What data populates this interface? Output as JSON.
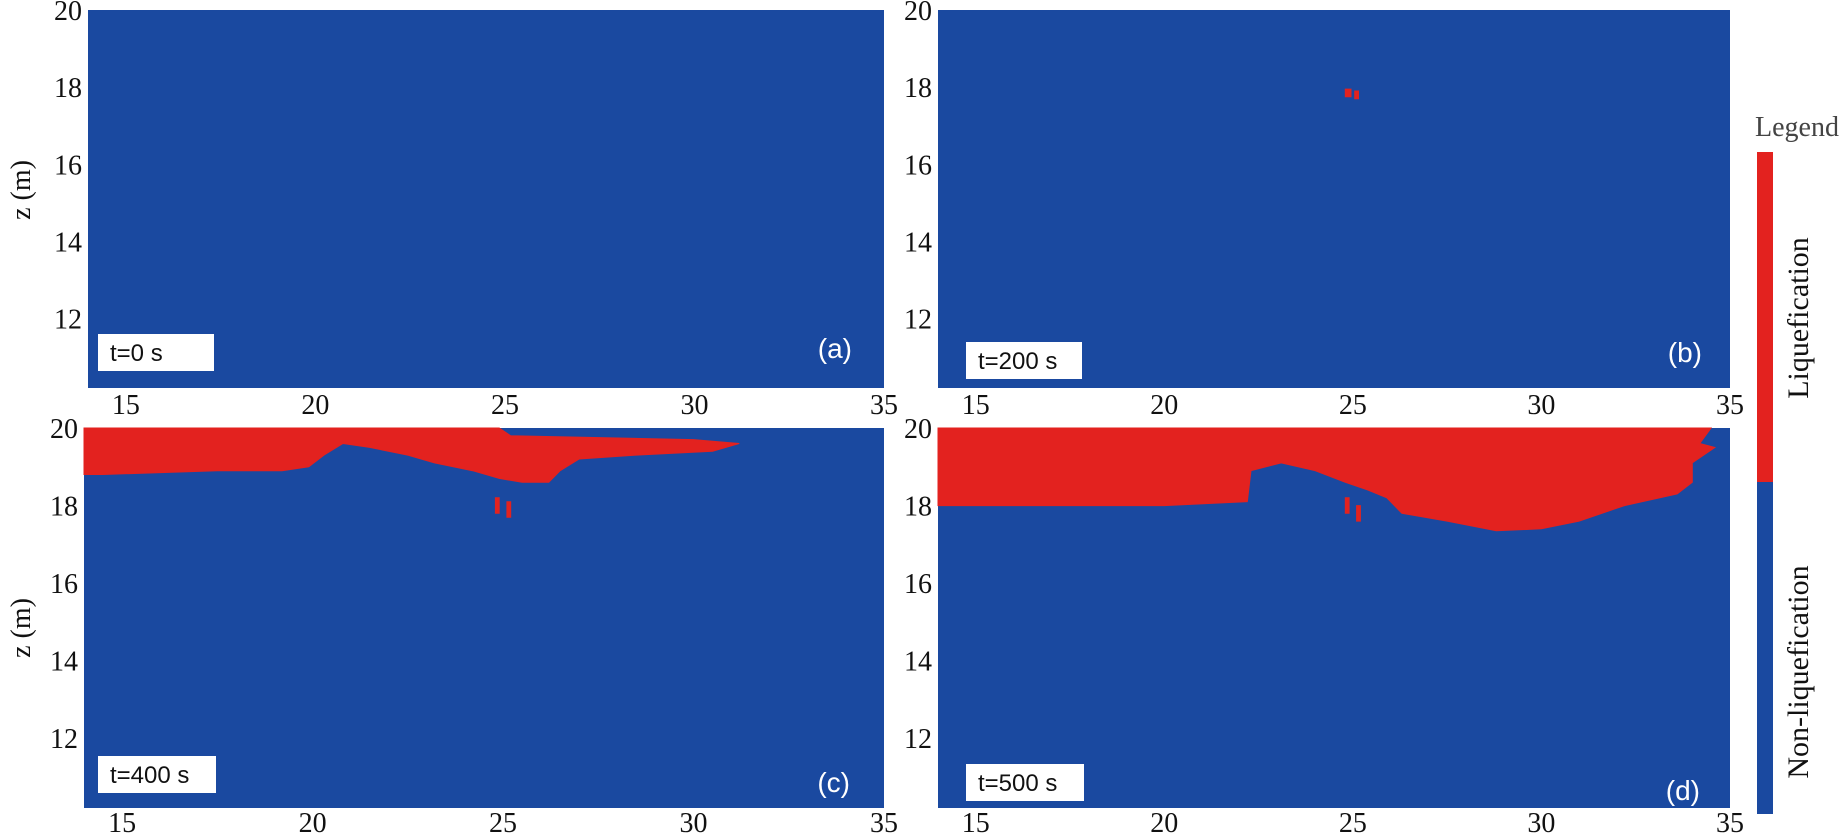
{
  "colors": {
    "non_liquefaction": "#1a49a0",
    "liquefaction": "#e3221f"
  },
  "chart_data": [
    {
      "type": "heatmap",
      "panel_label": "(a)",
      "time_label": "t=0 s",
      "ylabel": "z (m)",
      "xlim": [
        14,
        35
      ],
      "ylim": [
        10.2,
        20
      ],
      "xticks": [
        "15",
        "20",
        "25",
        "30",
        "35"
      ],
      "yticks": [
        "12",
        "14",
        "16",
        "18",
        "20"
      ],
      "liquefied_regions": []
    },
    {
      "type": "heatmap",
      "panel_label": "(b)",
      "time_label": "t=200 s",
      "ylabel": "",
      "xlim": [
        14,
        35
      ],
      "ylim": [
        10.2,
        20
      ],
      "xticks": [
        "15",
        "20",
        "25",
        "30",
        "35"
      ],
      "yticks": [
        "12",
        "14",
        "16",
        "18",
        "20"
      ],
      "liquefied_regions": [
        [
          [
            24.8,
            17.95
          ],
          [
            24.95,
            17.95
          ],
          [
            24.95,
            17.75
          ],
          [
            24.8,
            17.75
          ]
        ],
        [
          [
            25.05,
            17.9
          ],
          [
            25.15,
            17.9
          ],
          [
            25.15,
            17.7
          ],
          [
            25.05,
            17.7
          ]
        ]
      ]
    },
    {
      "type": "heatmap",
      "panel_label": "(c)",
      "time_label": "t=400 s",
      "ylabel": "z (m)",
      "xlim": [
        14,
        35
      ],
      "ylim": [
        10.2,
        20
      ],
      "xticks": [
        "15",
        "20",
        "25",
        "30",
        "35"
      ],
      "yticks": [
        "12",
        "14",
        "16",
        "18",
        "20"
      ],
      "liquefied_regions": [
        [
          [
            14,
            20
          ],
          [
            24.9,
            20
          ],
          [
            25.2,
            19.8
          ],
          [
            30,
            19.7
          ],
          [
            31.2,
            19.6
          ],
          [
            30.5,
            19.4
          ],
          [
            28.5,
            19.3
          ],
          [
            27,
            19.2
          ],
          [
            26.5,
            18.9
          ],
          [
            26.2,
            18.6
          ],
          [
            25.5,
            18.6
          ],
          [
            24.9,
            18.7
          ],
          [
            24.2,
            18.9
          ],
          [
            23.2,
            19.1
          ],
          [
            22.5,
            19.3
          ],
          [
            21.5,
            19.5
          ],
          [
            20.8,
            19.6
          ],
          [
            20.3,
            19.3
          ],
          [
            19.9,
            19.0
          ],
          [
            19.2,
            18.9
          ],
          [
            17.5,
            18.9
          ],
          [
            14.5,
            18.8
          ],
          [
            14,
            18.8
          ]
        ],
        [
          [
            24.8,
            18.2
          ],
          [
            24.9,
            18.2
          ],
          [
            24.9,
            17.8
          ],
          [
            24.8,
            17.8
          ]
        ],
        [
          [
            25.1,
            18.1
          ],
          [
            25.2,
            18.1
          ],
          [
            25.2,
            17.7
          ],
          [
            25.1,
            17.7
          ]
        ]
      ]
    },
    {
      "type": "heatmap",
      "panel_label": "(d)",
      "time_label": "t=500 s",
      "ylabel": "",
      "xlim": [
        14,
        35
      ],
      "ylim": [
        10.2,
        20
      ],
      "xticks": [
        "15",
        "20",
        "25",
        "30",
        "35"
      ],
      "yticks": [
        "12",
        "14",
        "16",
        "18",
        "20"
      ],
      "liquefied_regions": [
        [
          [
            14,
            20
          ],
          [
            34.5,
            20
          ],
          [
            34.2,
            19.6
          ],
          [
            34.6,
            19.5
          ],
          [
            34,
            19.1
          ],
          [
            34.0,
            18.6
          ],
          [
            33.6,
            18.3
          ],
          [
            32.2,
            18.0
          ],
          [
            31.0,
            17.6
          ],
          [
            30.0,
            17.4
          ],
          [
            28.8,
            17.35
          ],
          [
            27.5,
            17.6
          ],
          [
            26.3,
            17.8
          ],
          [
            25.9,
            18.2
          ],
          [
            25.4,
            18.4
          ],
          [
            24.8,
            18.6
          ],
          [
            24.0,
            18.9
          ],
          [
            23.1,
            19.1
          ],
          [
            22.3,
            18.9
          ],
          [
            22.2,
            18.1
          ],
          [
            20,
            18.0
          ],
          [
            17,
            18.0
          ],
          [
            14,
            18.0
          ]
        ],
        [
          [
            24.8,
            18.2
          ],
          [
            24.9,
            18.2
          ],
          [
            24.9,
            17.8
          ],
          [
            24.8,
            17.8
          ]
        ],
        [
          [
            25.1,
            18.0
          ],
          [
            25.2,
            18.0
          ],
          [
            25.2,
            17.6
          ],
          [
            25.1,
            17.6
          ]
        ]
      ]
    }
  ],
  "legend": {
    "title": "Legend",
    "liquefaction_label": "Liquefication",
    "non_liquefaction_label": "Non-liquefication"
  }
}
